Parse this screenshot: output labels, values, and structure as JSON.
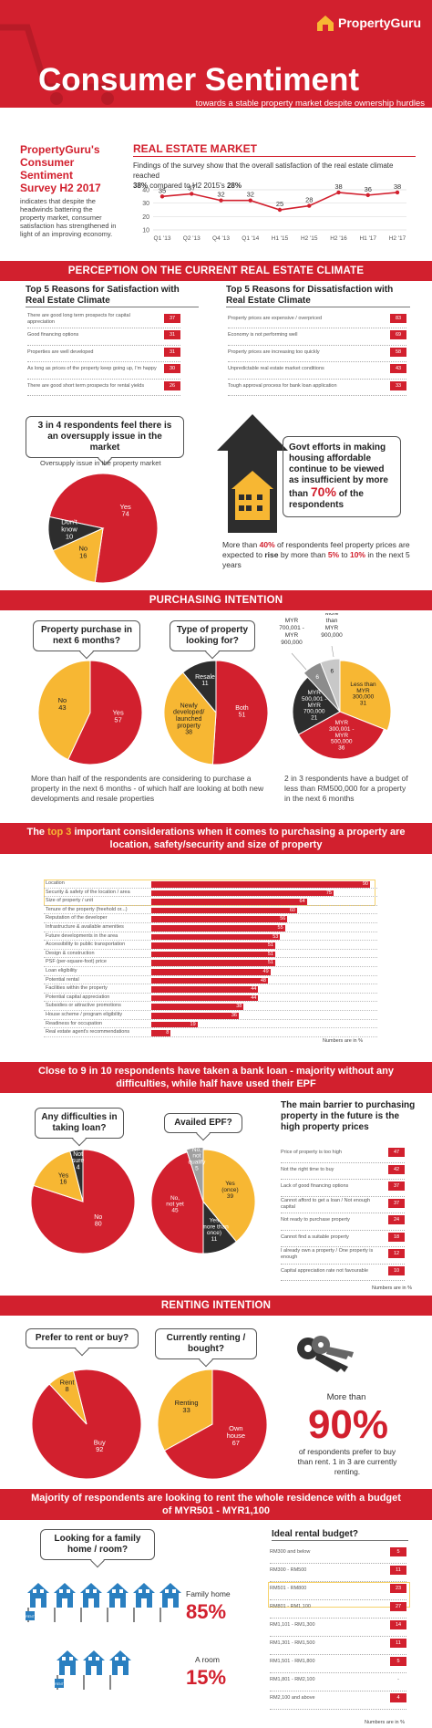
{
  "brand": {
    "name": "PropertyGuru"
  },
  "header": {
    "title": "Consumer Sentiment",
    "subtitle": "towards a stable property market despite ownership hurdles"
  },
  "intro": {
    "title": "PropertyGuru's Consumer Sentiment Survey H2 2017",
    "body": "indicates that despite the headwinds battering the property market, consumer satisfaction has strengthened in light of an improving economy."
  },
  "market": {
    "heading": "REAL ESTATE MARKET",
    "text_a": "Findings of the survey show that the overall satisfaction of the real estate climate reached",
    "pct_2017": "38%",
    "text_b": "compared to H2 2015's",
    "pct_2015": "28%"
  },
  "perception": {
    "band": "PERCEPTION ON THE CURRENT REAL ESTATE CLIMATE",
    "sat_title": "Top 5 Reasons for Satisfaction with Real Estate Climate",
    "sat_items": [
      {
        "label": "There are good long term prospects for capital appreciation",
        "value": "37"
      },
      {
        "label": "Good financing options",
        "value": "31"
      },
      {
        "label": "Properties are well developed",
        "value": "31"
      },
      {
        "label": "As long as prices of the property keep going up, I'm happy",
        "value": "30"
      },
      {
        "label": "There are good short term prospects for rental yields",
        "value": "26"
      }
    ],
    "dis_title": "Top 5 Reasons for Dissatisfaction with Real Estate Climate",
    "dis_items": [
      {
        "label": "Property prices are expensive / overpriced",
        "value": "83"
      },
      {
        "label": "Economy is not performing well",
        "value": "69"
      },
      {
        "label": "Property prices are increasing too quickly",
        "value": "58"
      },
      {
        "label": "Unpredictable real estate market conditions",
        "value": "43"
      },
      {
        "label": "Tough approval process for bank loan application",
        "value": "33"
      }
    ],
    "oversupply_bubble": "3 in 4 respondents feel there is an oversupply issue in the market",
    "oversupply_caption": "Oversupply issue in the property market",
    "govt_text_a": "Govt efforts in making housing affordable continue to be viewed as insufficient by more than",
    "govt_pct": "70%",
    "govt_text_b": "of the respondents",
    "rise_a": "More than",
    "rise_pct": "40%",
    "rise_b": "of respondents feel property prices are expected to",
    "rise_word": "rise",
    "rise_c": "by more than",
    "rise_lo": "5%",
    "rise_to": "to",
    "rise_hi": "10%",
    "rise_d": "in the next 5 years"
  },
  "purchasing": {
    "band": "PURCHASING INTENTION",
    "q1": "Property purchase in next 6 months?",
    "q2": "Type of property looking for?",
    "caption1": "More than half of the respondents are considering to purchase a property in the next 6 months - of which half are looking at both new developments and resale properties",
    "caption2": "2 in 3 respondents have a budget of less than RM500,000 for a property in the next 6 months"
  },
  "considerations": {
    "t1": "The",
    "hl": "top 3",
    "t2": "important considerations when it comes to purchasing a property are location, safety/security and size of property",
    "note": "Numbers are in %",
    "items": [
      {
        "label": "Location",
        "value": "90"
      },
      {
        "label": "Security & safety of the location / area",
        "value": "75"
      },
      {
        "label": "Size of property / unit",
        "value": "64"
      },
      {
        "label": "Tenure of the property (freehold or...)",
        "value": "60"
      },
      {
        "label": "Reputation of the developer",
        "value": "56"
      },
      {
        "label": "Infrastructure & available amenities",
        "value": "55"
      },
      {
        "label": "Future developments in the area",
        "value": "53"
      },
      {
        "label": "Accessibility to public transportation",
        "value": "51"
      },
      {
        "label": "Design & construction",
        "value": "51"
      },
      {
        "label": "PSF (per-square-foot) price",
        "value": "51"
      },
      {
        "label": "Loan eligibility",
        "value": "49"
      },
      {
        "label": "Potential rental",
        "value": "48"
      },
      {
        "label": "Facilities within the property",
        "value": "44"
      },
      {
        "label": "Potential capital appreciation",
        "value": "44"
      },
      {
        "label": "Subsidies or attractive promotions",
        "value": "38"
      },
      {
        "label": "House scheme / program eligibility",
        "value": "36"
      },
      {
        "label": "Readiness for occupation",
        "value": "19"
      },
      {
        "label": "Real estate agent's recommendations",
        "value": "8"
      }
    ]
  },
  "loan": {
    "band": "Close to 9 in 10 respondents have taken a bank loan - majority without any difficulties, while half have used their EPF",
    "q1": "Any difficulties in taking loan?",
    "q2": "Availed EPF?",
    "barrier_title": "The main barrier to purchasing property in the future is the high property prices",
    "barrier_items": [
      {
        "label": "Price of property is too high",
        "value": "47"
      },
      {
        "label": "Not the right time to buy",
        "value": "42"
      },
      {
        "label": "Lack of good financing options",
        "value": "37"
      },
      {
        "label": "Cannot afford to get a loan / Not enough capital",
        "value": "37"
      },
      {
        "label": "Not ready to purchase property",
        "value": "24"
      },
      {
        "label": "Cannot find a suitable property",
        "value": "18"
      },
      {
        "label": "I already own a property / One property is enough",
        "value": "12"
      },
      {
        "label": "Capital appreciation rate not favourable",
        "value": "10"
      }
    ],
    "note": "Numbers are in %"
  },
  "renting": {
    "band": "RENTING INTENTION",
    "q1": "Prefer to rent or buy?",
    "q2": "Currently renting / bought?",
    "more_than": "More than",
    "big": "90%",
    "desc": "of respondents prefer to buy than rent. 1 in 3 are currently renting."
  },
  "rental": {
    "band": "Majority of respondents are looking to rent the whole residence with a budget of MYR501 - MYR1,100",
    "q": "Looking for a family home / room?",
    "family_label": "Family home",
    "family_pct": "85%",
    "room_label": "A room",
    "room_pct": "15%",
    "rent_sign": "RENT",
    "budget_title": "Ideal rental budget?",
    "budget_items": [
      {
        "label": "RM300 and below",
        "value": "5"
      },
      {
        "label": "RM300 - RM500",
        "value": "11"
      },
      {
        "label": "RM501 - RM800",
        "value": "23"
      },
      {
        "label": "RM801 - RM1,100",
        "value": "27"
      },
      {
        "label": "RM1,101 - RM1,300",
        "value": "14"
      },
      {
        "label": "RM1,301 - RM1,500",
        "value": "11"
      },
      {
        "label": "RM1,501 - RM1,800",
        "value": "5"
      },
      {
        "label": "RM1,801 - RM2,100",
        "value": "-"
      },
      {
        "label": "RM2,100 and above",
        "value": "4"
      }
    ],
    "note": "Numbers are in %"
  },
  "chart_data": [
    {
      "type": "line",
      "title": "REAL ESTATE MARKET",
      "x": [
        "Q1 '13",
        "Q2 '13",
        "Q4 '13",
        "Q1 '14",
        "H1 '15",
        "H2 '15",
        "H2 '16",
        "H1 '17",
        "H2 '17"
      ],
      "series": [
        {
          "values": [
            35,
            37,
            32,
            32,
            25,
            28,
            38,
            36,
            38
          ]
        }
      ],
      "yticks": [
        10,
        20,
        30,
        40
      ],
      "ylim": [
        10,
        40
      ],
      "grid": true
    },
    {
      "type": "pie",
      "title": "Oversupply issue in the property market",
      "labels": [
        "Yes",
        "No",
        "Don't know"
      ],
      "values": [
        74,
        16,
        10
      ],
      "colors": [
        "#d2202e",
        "#f7b733",
        "#2d2d2d"
      ]
    },
    {
      "type": "pie",
      "title": "Property purchase in next 6 months?",
      "labels": [
        "Yes",
        "No"
      ],
      "values": [
        57,
        43
      ],
      "colors": [
        "#d2202e",
        "#f7b733"
      ]
    },
    {
      "type": "pie",
      "title": "Type of property looking for?",
      "labels": [
        "Both",
        "Newly developed/ launched property",
        "Resale"
      ],
      "values": [
        51,
        38,
        11
      ],
      "colors": [
        "#d2202e",
        "#f7b733",
        "#2d2d2d"
      ]
    },
    {
      "type": "pie",
      "labels": [
        "Less than MYR 300,000",
        "MYR 300,001 - MYR 500,000",
        "MYR 500,001 - MYR 700,000",
        "MYR 700,001 - MYR 900,000",
        "More than MYR 900,000"
      ],
      "values": [
        31,
        36,
        21,
        6,
        6
      ],
      "colors": [
        "#f7b733",
        "#d2202e",
        "#2d2d2d",
        "#8c8c8c",
        "#c8c8c8"
      ]
    },
    {
      "type": "bar",
      "orientation": "horizontal",
      "title": "The top 3 important considerations when it comes to purchasing a property are location, safety/security and size of property",
      "categories": [
        "Location",
        "Security & safety of the location / area",
        "Size of property / unit",
        "Tenure of the property (freehold or...)",
        "Reputation of the developer",
        "Infrastructure & available amenities",
        "Future developments in the area",
        "Accessibility to public transportation",
        "Design & construction",
        "PSF (per-square-foot) price",
        "Loan eligibility",
        "Potential rental",
        "Facilities within the property",
        "Potential capital appreciation",
        "Subsidies or attractive promotions",
        "House scheme / program eligibility",
        "Readiness for occupation",
        "Real estate agent's recommendations"
      ],
      "values": [
        90,
        75,
        64,
        60,
        56,
        55,
        53,
        51,
        51,
        51,
        49,
        48,
        44,
        44,
        38,
        36,
        19,
        8
      ]
    },
    {
      "type": "pie",
      "title": "Any difficulties in taking loan?",
      "labels": [
        "No",
        "Yes",
        "Not sure"
      ],
      "values": [
        80,
        16,
        4
      ],
      "colors": [
        "#d2202e",
        "#f7b733",
        "#2d2d2d"
      ]
    },
    {
      "type": "pie",
      "title": "Availed EPF?",
      "labels": [
        "Yes (once)",
        "Yes (more than once)",
        "No, not yet",
        "No, not qualify"
      ],
      "values": [
        39,
        11,
        45,
        5
      ],
      "colors": [
        "#f7b733",
        "#2d2d2d",
        "#d2202e",
        "#a0a0a0"
      ]
    },
    {
      "type": "pie",
      "title": "Prefer to rent or buy?",
      "labels": [
        "Buy",
        "Rent"
      ],
      "values": [
        92,
        8
      ],
      "colors": [
        "#d2202e",
        "#f7b733"
      ]
    },
    {
      "type": "pie",
      "title": "Currently renting / bought?",
      "labels": [
        "Own house",
        "Renting"
      ],
      "values": [
        67,
        33
      ],
      "colors": [
        "#d2202e",
        "#f7b733"
      ]
    }
  ]
}
